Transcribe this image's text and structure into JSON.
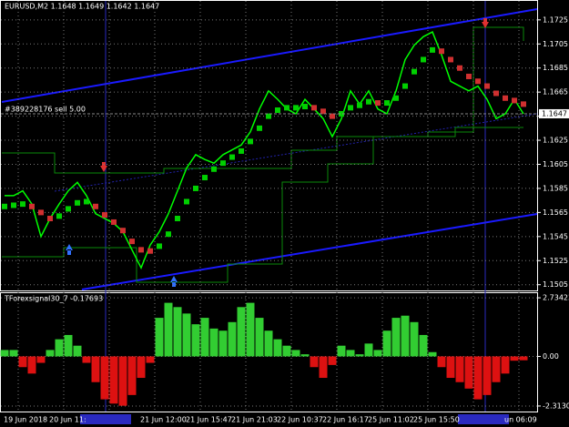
{
  "chart_data": [
    {
      "type": "line",
      "title": "EURUSD,M2  1.1648 1.1649 1.1642 1.1647",
      "annotation": "#389228176 sell 5.00",
      "last_price": 1.1647,
      "x_labels": [
        "19 Jun 2018",
        "20 Jun 11:",
        null,
        "21 Jun 12:00",
        "21 Jun 15:47",
        "21 Jun 21:03",
        "22 Jun 10:37",
        "22 Jun 16:17",
        "25 Jun 11:02",
        "25 Jun 15:50",
        null,
        "un 06:09"
      ],
      "ylim": [
        1.1501,
        1.174
      ],
      "yticks": [
        1.1505,
        1.1525,
        1.1545,
        1.1565,
        1.1585,
        1.1605,
        1.1625,
        1.1645,
        1.1665,
        1.1685,
        1.1705,
        1.1725
      ],
      "grid": true,
      "series": [
        {
          "name": "price",
          "color": "#00ff00",
          "values": [
            1.1579,
            1.1579,
            1.1583,
            1.1572,
            1.1545,
            1.156,
            1.1572,
            1.1583,
            1.159,
            1.1579,
            1.1564,
            1.156,
            1.1556,
            1.1549,
            1.1534,
            1.1519,
            1.1538,
            1.1549,
            1.1564,
            1.1583,
            1.1602,
            1.1613,
            1.1609,
            1.1606,
            1.1613,
            1.1617,
            1.1621,
            1.1632,
            1.1651,
            1.1666,
            1.1659,
            1.1651,
            1.1647,
            1.1659,
            1.1651,
            1.1643,
            1.1628,
            1.1643,
            1.1666,
            1.1655,
            1.1666,
            1.1651,
            1.1647,
            1.1666,
            1.1692,
            1.1704,
            1.1711,
            1.1715,
            1.1696,
            1.1674,
            1.167,
            1.1666,
            1.167,
            1.1659,
            1.1643,
            1.1647,
            1.1659,
            1.1647
          ]
        },
        {
          "name": "trend",
          "color": "#00d000",
          "down_color": "#d03030",
          "values": [
            1.157,
            1.1571,
            1.1572,
            1.157,
            1.1565,
            1.156,
            1.1562,
            1.1568,
            1.1573,
            1.1574,
            1.157,
            1.1563,
            1.1557,
            1.155,
            1.1541,
            1.1534,
            1.1533,
            1.1537,
            1.1547,
            1.156,
            1.1574,
            1.1585,
            1.1594,
            1.1601,
            1.1606,
            1.1611,
            1.1616,
            1.1624,
            1.1635,
            1.1645,
            1.165,
            1.1652,
            1.1652,
            1.1653,
            1.1652,
            1.1649,
            1.1645,
            1.1647,
            1.1652,
            1.1654,
            1.1657,
            1.1656,
            1.1656,
            1.166,
            1.167,
            1.1682,
            1.1692,
            1.17,
            1.1699,
            1.1692,
            1.1685,
            1.1678,
            1.1674,
            1.167,
            1.1664,
            1.166,
            1.1658,
            1.1655
          ]
        }
      ]
    },
    {
      "type": "bar",
      "title": "TForexsignal30_7 -0.17693",
      "ylim": [
        -2.57,
        2.95
      ],
      "yticks": [
        2.73423,
        {
          "value": 0,
          "label": "0.00"
        },
        -2.31302
      ],
      "grid": true,
      "up_color": "#32cd32",
      "down_color": "#dd1111",
      "values": [
        0.3,
        0.3,
        -0.5,
        -0.8,
        -0.3,
        0.3,
        0.8,
        1.0,
        0.5,
        -0.3,
        -1.2,
        -2.0,
        -2.2,
        -2.3,
        -1.8,
        -1.0,
        -0.3,
        1.8,
        2.5,
        2.3,
        2.0,
        1.5,
        1.8,
        1.3,
        1.2,
        1.6,
        2.3,
        2.5,
        1.8,
        1.2,
        0.8,
        0.5,
        0.3,
        0.1,
        -0.5,
        -1.0,
        -0.4,
        0.5,
        0.3,
        0.1,
        0.6,
        0.3,
        1.2,
        1.8,
        1.9,
        1.6,
        1.0,
        0.2,
        -0.5,
        -1.0,
        -1.2,
        -1.5,
        -2.0,
        -1.8,
        -1.2,
        -0.8,
        -0.2,
        -0.18
      ]
    }
  ]
}
